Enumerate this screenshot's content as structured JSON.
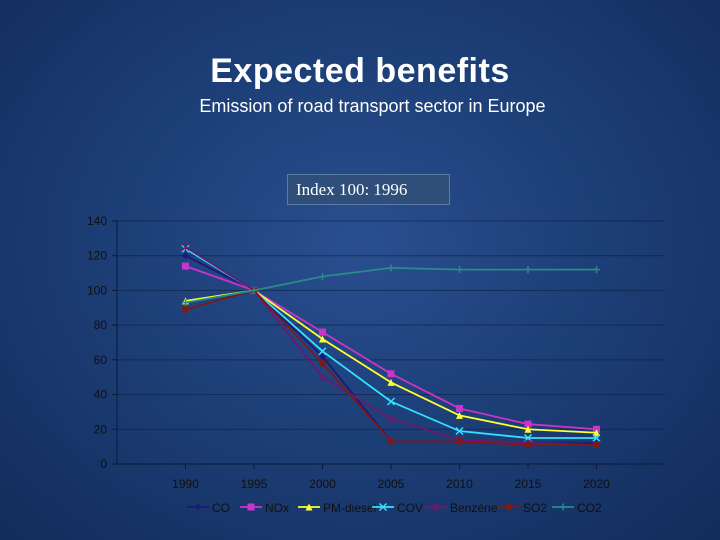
{
  "slide": {
    "title": "Expected benefits",
    "subtitle": "Emission of road transport sector  in Europe",
    "index_label": "Index 100: 1996"
  },
  "chart_data": {
    "type": "line",
    "x": [
      1990,
      1995,
      2000,
      2005,
      2010,
      2015,
      2020
    ],
    "xlim": [
      1985,
      2025
    ],
    "ylim": [
      0,
      140
    ],
    "yticks": [
      0,
      20,
      40,
      60,
      80,
      100,
      120,
      140
    ],
    "xlabel": "",
    "ylabel": "",
    "grid": "horizontal",
    "legend": "bottom",
    "series": [
      {
        "name": "CO",
        "color": "#1a1a7a",
        "marker": "diamond",
        "values": [
          120,
          100,
          62,
          13,
          13,
          12,
          12
        ]
      },
      {
        "name": "NOx",
        "color": "#cc33cc",
        "marker": "square",
        "values": [
          114,
          100,
          76,
          52,
          32,
          23,
          20
        ]
      },
      {
        "name": "PM-diesel",
        "color": "#ffff33",
        "marker": "triangle",
        "values": [
          94,
          100,
          72,
          47,
          28,
          20,
          18
        ]
      },
      {
        "name": "COV",
        "color": "#33e0ff",
        "marker": "x",
        "values": [
          124,
          100,
          65,
          36,
          19,
          15,
          15
        ]
      },
      {
        "name": "Benzène",
        "color": "#6a1a6a",
        "marker": "star",
        "values": [
          125,
          100,
          50,
          26,
          14,
          12,
          11
        ]
      },
      {
        "name": "SO2",
        "color": "#7a1a1a",
        "marker": "circle",
        "values": [
          89,
          100,
          58,
          13,
          13,
          11,
          11
        ]
      },
      {
        "name": "CO2",
        "color": "#2a8a8a",
        "marker": "plus",
        "values": [
          93,
          100,
          108,
          113,
          112,
          112,
          112
        ]
      }
    ]
  }
}
